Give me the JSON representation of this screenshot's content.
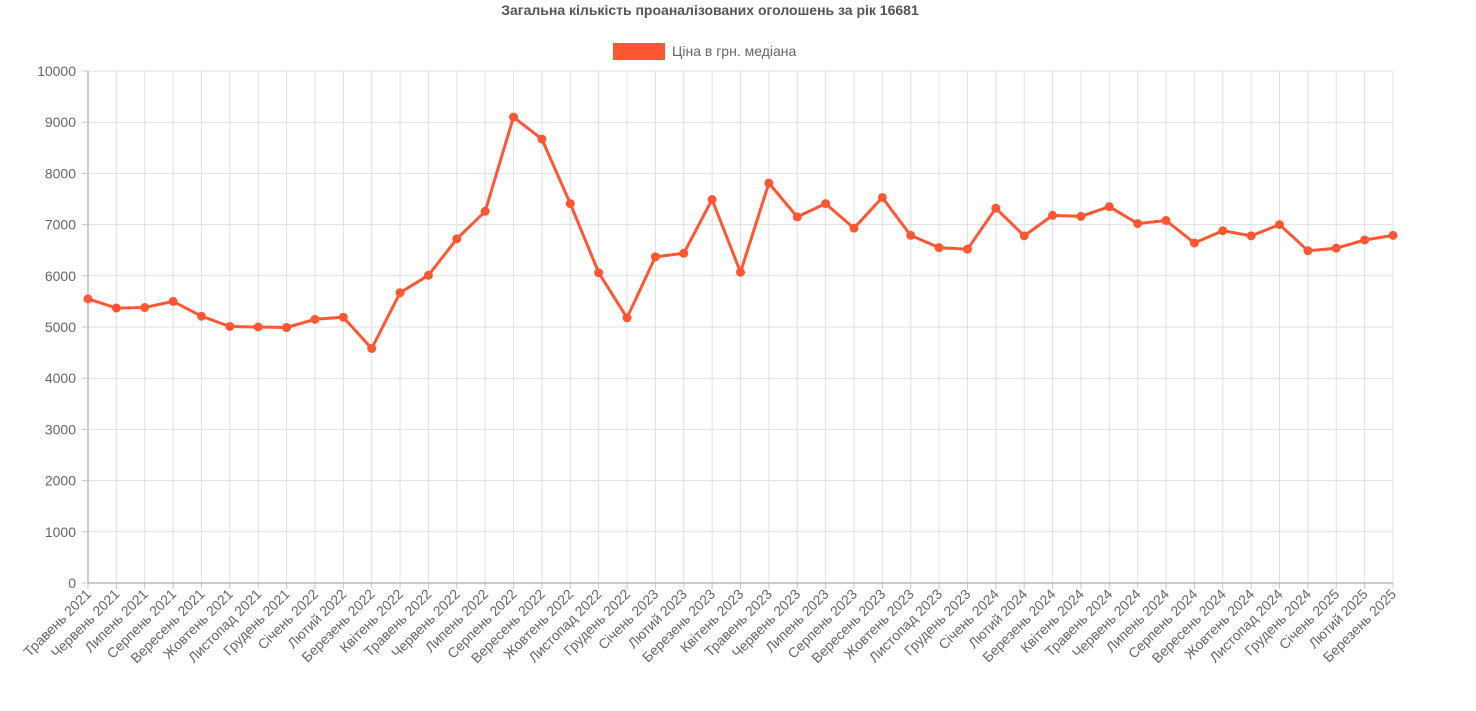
{
  "chart_data": {
    "type": "line",
    "title": "Загальна кількість проаналізованих оголошень за рік 16681",
    "xlabel": "",
    "ylabel": "",
    "ylim": [
      0,
      10000
    ],
    "y_ticks": [
      0,
      1000,
      2000,
      3000,
      4000,
      5000,
      6000,
      7000,
      8000,
      9000,
      10000
    ],
    "grid": true,
    "legend_position": "top",
    "categories": [
      "Травень 2021",
      "Червень 2021",
      "Липень 2021",
      "Серпень 2021",
      "Вересень 2021",
      "Жовтень 2021",
      "Листопад 2021",
      "Грудень 2021",
      "Січень 2022",
      "Лютий 2022",
      "Березень 2022",
      "Квітень 2022",
      "Травень 2022",
      "Червень 2022",
      "Липень 2022",
      "Серпень 2022",
      "Вересень 2022",
      "Жовтень 2022",
      "Листопад 2022",
      "Грудень 2022",
      "Січень 2023",
      "Лютий 2023",
      "Березень 2023",
      "Квітень 2023",
      "Травень 2023",
      "Червень 2023",
      "Липень 2023",
      "Серпень 2023",
      "Вересень 2023",
      "Жовтень 2023",
      "Листопад 2023",
      "Грудень 2023",
      "Січень 2024",
      "Лютий 2024",
      "Березень 2024",
      "Квітень 2024",
      "Травень 2024",
      "Червень 2024",
      "Липень 2024",
      "Серпень 2024",
      "Вересень 2024",
      "Жовтень 2024",
      "Листопад 2024",
      "Грудень 2024",
      "Січень 2025",
      "Лютий 2025",
      "Березень 2025"
    ],
    "series": [
      {
        "name": "Ціна в грн. медіана",
        "color": "#ff5733",
        "values": [
          5550,
          5370,
          5380,
          5500,
          5210,
          5010,
          5000,
          4990,
          5150,
          5190,
          4580,
          5670,
          6010,
          6720,
          7260,
          9100,
          8670,
          7410,
          6060,
          5180,
          6370,
          6440,
          7490,
          6070,
          7810,
          7150,
          7410,
          6930,
          7530,
          6790,
          6550,
          6520,
          7320,
          6780,
          7180,
          7160,
          7350,
          7020,
          7080,
          6640,
          6880,
          6780,
          7000,
          6490,
          6540,
          6700,
          6790
        ]
      }
    ]
  }
}
